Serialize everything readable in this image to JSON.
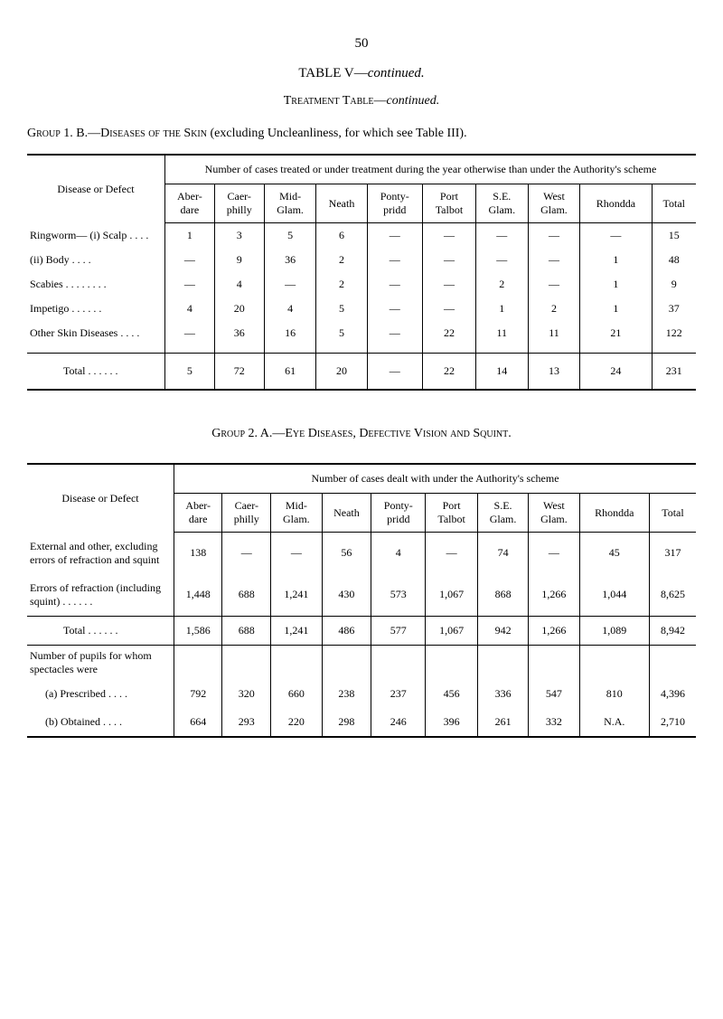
{
  "page_number": "50",
  "table_v_title": "TABLE V—",
  "table_v_cont": "continued.",
  "treatment_label": "Treatment Table—",
  "treatment_cont": "continued.",
  "group1_prefix": "Group 1.   B.—",
  "group1_caps": "Diseases of the Skin",
  "group1_rest": " (excluding Uncleanliness, for which see Table III).",
  "table1": {
    "dd_label": "Disease or Defect",
    "spanner": "Number of cases treated or under treatment during the year otherwise than under the Authority's scheme",
    "cols": [
      "Aber-\ndare",
      "Caer-\nphilly",
      "Mid-\nGlam.",
      "Neath",
      "Ponty-\npridd",
      "Port\nTalbot",
      "S.E.\nGlam.",
      "West\nGlam.",
      "Rhondda",
      "Total"
    ],
    "rows": [
      {
        "label": "Ringworm— (i) Scalp . .    . .",
        "vals": [
          "1",
          "3",
          "5",
          "6",
          "—",
          "—",
          "—",
          "—",
          "—",
          "15"
        ]
      },
      {
        "label": "(ii) Body . .    . .",
        "indent": true,
        "vals": [
          "—",
          "9",
          "36",
          "2",
          "—",
          "—",
          "—",
          "—",
          "1",
          "48"
        ]
      },
      {
        "label": "Scabies . .    . .    . .    . .",
        "vals": [
          "—",
          "4",
          "—",
          "2",
          "—",
          "—",
          "2",
          "—",
          "1",
          "9"
        ]
      },
      {
        "label": "Impetigo     . .    . .    . .",
        "vals": [
          "4",
          "20",
          "4",
          "5",
          "—",
          "—",
          "1",
          "2",
          "1",
          "37"
        ]
      },
      {
        "label": "Other Skin Diseases  . .    . .",
        "vals": [
          "—",
          "36",
          "16",
          "5",
          "—",
          "22",
          "11",
          "11",
          "21",
          "122"
        ]
      }
    ],
    "total_label": "Total    . .    . .    . .",
    "total_vals": [
      "5",
      "72",
      "61",
      "20",
      "—",
      "22",
      "14",
      "13",
      "24",
      "231"
    ]
  },
  "group2_prefix": "Group 2.   A.—",
  "group2_caps": "Eye Diseases, Defective Vision and Squint.",
  "table2": {
    "dd_label": "Disease or Defect",
    "spanner": "Number of cases dealt with under the Authority's scheme",
    "cols": [
      "Aber-\ndare",
      "Caer-\nphilly",
      "Mid-\nGlam.",
      "Neath",
      "Ponty-\npridd",
      "Port\nTalbot",
      "S.E.\nGlam.",
      "West\nGlam.",
      "Rhondda",
      "Total"
    ],
    "rows_a": [
      {
        "label": "External and other, excluding errors of refraction and squint",
        "vals": [
          "138",
          "—",
          "—",
          "56",
          "4",
          "—",
          "74",
          "—",
          "45",
          "317"
        ]
      },
      {
        "label": "Errors of refraction (including squint)      . .    . .    . .",
        "vals": [
          "1,448",
          "688",
          "1,241",
          "430",
          "573",
          "1,067",
          "868",
          "1,266",
          "1,044",
          "8,625"
        ]
      }
    ],
    "total_label": "Total    . .    . .    . .",
    "total_vals": [
      "1,586",
      "688",
      "1,241",
      "486",
      "577",
      "1,067",
      "942",
      "1,266",
      "1,089",
      "8,942"
    ],
    "section_label": "Number of pupils for whom spectacles were",
    "rows_b": [
      {
        "label": "(a) Prescribed    . .    . .",
        "vals": [
          "792",
          "320",
          "660",
          "238",
          "237",
          "456",
          "336",
          "547",
          "810",
          "4,396"
        ]
      },
      {
        "label": "(b) Obtained      . .    . .",
        "vals": [
          "664",
          "293",
          "220",
          "298",
          "246",
          "396",
          "261",
          "332",
          "N.A.",
          "2,710"
        ]
      }
    ]
  }
}
